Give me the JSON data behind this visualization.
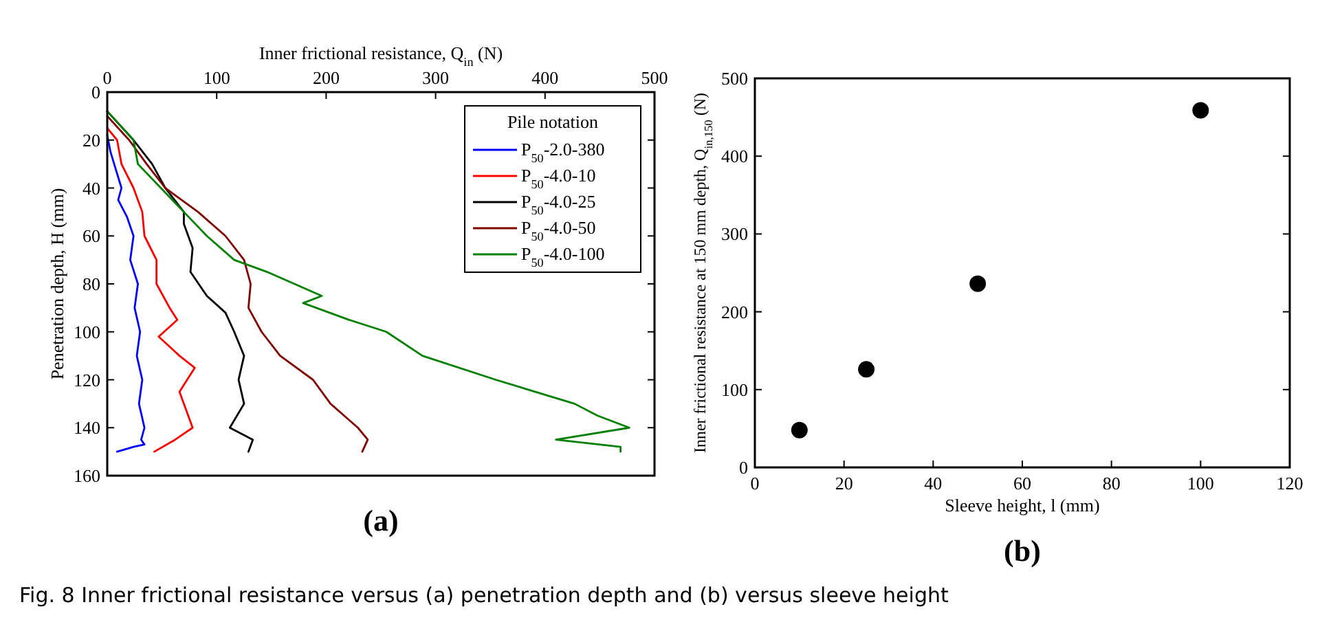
{
  "chart_data": [
    {
      "type": "line",
      "xlabel": "Inner frictional resistance, Q$_{in}$ (N)",
      "ylabel": "Penetration depth, H (mm)",
      "xlim": [
        0,
        500
      ],
      "xticks": [
        0,
        100,
        200,
        300,
        400,
        500
      ],
      "ylim": [
        160,
        0
      ],
      "yticks": [
        0,
        20,
        40,
        60,
        80,
        100,
        120,
        140,
        160
      ],
      "legend": "top right",
      "legend_title": "Pile notation",
      "grid": false,
      "marker": "none",
      "line_style": "solid",
      "annotations": [
        "(a)",
        "Fig. 8  Inner frictional resistance versus (a) penetration depth and (b) versus sleeve height"
      ],
      "series": [
        {
          "name": "P$_{50}$-2.0-380",
          "color": "#0000ff",
          "x": [
            0,
            3,
            13,
            10,
            18,
            24,
            21,
            28,
            25,
            30,
            27,
            32,
            29,
            34,
            31,
            34,
            24,
            9
          ],
          "values": [
            18,
            25,
            40,
            45,
            52,
            60,
            70,
            80,
            90,
            100,
            110,
            120,
            130,
            140,
            145,
            147,
            148,
            150
          ]
        },
        {
          "name": "P$_{50}$-4.0-10",
          "color": "#ff0000",
          "x": [
            0,
            9,
            13,
            24,
            32,
            34,
            45,
            45,
            57,
            64,
            47,
            66,
            80,
            66,
            74,
            78,
            62,
            43
          ],
          "values": [
            15,
            20,
            30,
            40,
            50,
            60,
            70,
            80,
            90,
            95,
            102,
            110,
            115,
            125,
            135,
            140,
            145,
            150
          ]
        },
        {
          "name": "P$_{50}$-4.0-25",
          "color": "#000000",
          "x": [
            0,
            24,
            41,
            53,
            70,
            70,
            78,
            76,
            91,
            108,
            116,
            125,
            120,
            125,
            112,
            133,
            129
          ],
          "values": [
            8,
            20,
            30,
            40,
            50,
            55,
            65,
            75,
            85,
            92,
            100,
            110,
            120,
            130,
            140,
            145,
            150
          ]
        },
        {
          "name": "P$_{50}$-4.0-50",
          "color": "#800000",
          "x": [
            0,
            20,
            36,
            53,
            83,
            108,
            125,
            131,
            129,
            141,
            158,
            188,
            204,
            229,
            238,
            233
          ],
          "values": [
            10,
            20,
            30,
            40,
            50,
            60,
            70,
            80,
            90,
            100,
            110,
            120,
            130,
            140,
            145,
            150
          ]
        },
        {
          "name": "P$_{50}$-4.0-100",
          "color": "#008000",
          "x": [
            0,
            24,
            28,
            49,
            70,
            91,
            116,
            146,
            171,
            196,
            179,
            221,
            255,
            288,
            355,
            427,
            448,
            477,
            410,
            469,
            469
          ],
          "values": [
            8,
            20,
            30,
            40,
            50,
            60,
            70,
            75,
            80,
            85,
            88,
            95,
            100,
            110,
            120,
            130,
            135,
            140,
            145,
            148,
            150
          ]
        }
      ]
    },
    {
      "type": "scatter",
      "xlabel": "Sleeve height, l (mm)",
      "ylabel": "Inner frictional resistance at 150 mm depth, Q$_{in,150}$ (N)",
      "xlim": [
        0,
        120
      ],
      "xticks": [
        0,
        20,
        40,
        60,
        80,
        100,
        120
      ],
      "ylim": [
        0,
        500
      ],
      "yticks": [
        0,
        100,
        200,
        300,
        400,
        500
      ],
      "grid": false,
      "marker": "circle",
      "annotations": [
        "(b)"
      ],
      "series": [
        {
          "color": "#000000",
          "x": [
            10,
            25,
            50,
            100
          ],
          "values": [
            48,
            126,
            236,
            459
          ]
        }
      ]
    }
  ]
}
